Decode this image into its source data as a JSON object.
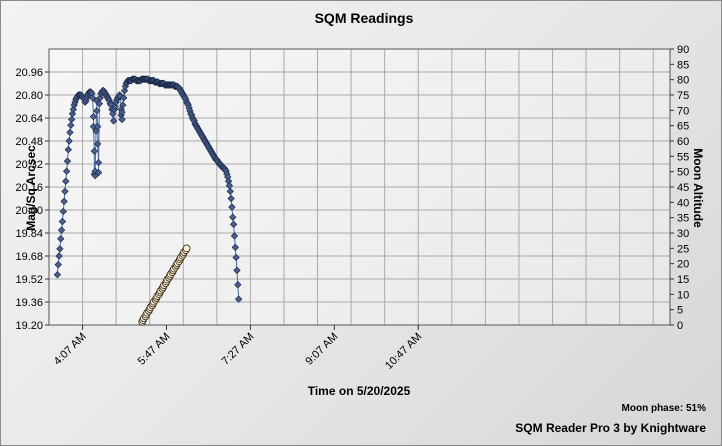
{
  "chart_data": {
    "type": "scatter",
    "title": "SQM Readings",
    "xlabel": "Time on 5/20/2025",
    "ylabel": "Mag/Sq Arcsec",
    "y2label": "Moon Altitude",
    "x_ticks": [
      "4:07 AM",
      "5:47 AM",
      "7:27 AM",
      "9:07 AM",
      "10:47 AM"
    ],
    "x_tick_minutes": [
      247,
      347,
      447,
      547,
      647
    ],
    "xlim_minutes": [
      207,
      947
    ],
    "ylim": [
      19.2,
      21.12
    ],
    "y_ticks": [
      "19.20",
      "19.36",
      "19.52",
      "19.68",
      "19.84",
      "20.00",
      "20.16",
      "20.32",
      "20.48",
      "20.64",
      "20.80",
      "20.96"
    ],
    "y2lim": [
      0,
      90
    ],
    "y2_ticks": [
      "0",
      "5",
      "10",
      "15",
      "20",
      "25",
      "30",
      "35",
      "40",
      "45",
      "50",
      "55",
      "60",
      "65",
      "70",
      "75",
      "80",
      "85",
      "90"
    ],
    "grid": true,
    "series": [
      {
        "kind": "sqm",
        "axis": "left",
        "color": "#4a5f8f",
        "points": [
          [
            217,
            19.55
          ],
          [
            218,
            19.62
          ],
          [
            219,
            19.68
          ],
          [
            220,
            19.73
          ],
          [
            221,
            19.8
          ],
          [
            222,
            19.86
          ],
          [
            223,
            19.92
          ],
          [
            224,
            19.99
          ],
          [
            225,
            20.06
          ],
          [
            226,
            20.13
          ],
          [
            227,
            20.2
          ],
          [
            228,
            20.27
          ],
          [
            229,
            20.34
          ],
          [
            230,
            20.42
          ],
          [
            231,
            20.48
          ],
          [
            232,
            20.54
          ],
          [
            233,
            20.59
          ],
          [
            234,
            20.63
          ],
          [
            235,
            20.67
          ],
          [
            236,
            20.7
          ],
          [
            237,
            20.73
          ],
          [
            238,
            20.75
          ],
          [
            239,
            20.77
          ],
          [
            240,
            20.78
          ],
          [
            241,
            20.79
          ],
          [
            242,
            20.8
          ],
          [
            243,
            20.8
          ],
          [
            244,
            20.8
          ],
          [
            245,
            20.8
          ],
          [
            246,
            20.79
          ],
          [
            247,
            20.79
          ],
          [
            248,
            20.78
          ],
          [
            249,
            20.77
          ],
          [
            250,
            20.75
          ],
          [
            251,
            20.76
          ],
          [
            252,
            20.78
          ],
          [
            253,
            20.8
          ],
          [
            254,
            20.81
          ],
          [
            255,
            20.82
          ],
          [
            256,
            20.82
          ],
          [
            257,
            20.82
          ],
          [
            258,
            20.81
          ],
          [
            259,
            20.78
          ],
          [
            260,
            20.65
          ],
          [
            260,
            20.58
          ],
          [
            261,
            20.41
          ],
          [
            261,
            20.25
          ],
          [
            262,
            20.24
          ],
          [
            262,
            20.27
          ],
          [
            263,
            20.55
          ],
          [
            264,
            20.76
          ],
          [
            264,
            20.69
          ],
          [
            265,
            20.58
          ],
          [
            265,
            20.46
          ],
          [
            266,
            20.33
          ],
          [
            266,
            20.26
          ],
          [
            267,
            20.74
          ],
          [
            268,
            20.78
          ],
          [
            269,
            20.81
          ],
          [
            270,
            20.82
          ],
          [
            271,
            20.83
          ],
          [
            272,
            20.83
          ],
          [
            273,
            20.82
          ],
          [
            274,
            20.81
          ],
          [
            275,
            20.8
          ],
          [
            276,
            20.79
          ],
          [
            277,
            20.78
          ],
          [
            278,
            20.77
          ],
          [
            279,
            20.76
          ],
          [
            280,
            20.74
          ],
          [
            281,
            20.73
          ],
          [
            282,
            20.7
          ],
          [
            283,
            20.67
          ],
          [
            284,
            20.62
          ],
          [
            285,
            20.7
          ],
          [
            286,
            20.72
          ],
          [
            287,
            20.75
          ],
          [
            288,
            20.77
          ],
          [
            289,
            20.78
          ],
          [
            290,
            20.79
          ],
          [
            291,
            20.8
          ],
          [
            292,
            20.79
          ],
          [
            293,
            20.7
          ],
          [
            293,
            20.66
          ],
          [
            294,
            20.63
          ],
          [
            294,
            20.68
          ],
          [
            295,
            20.73
          ],
          [
            296,
            20.78
          ],
          [
            297,
            20.83
          ],
          [
            298,
            20.86
          ],
          [
            299,
            20.88
          ],
          [
            300,
            20.89
          ],
          [
            301,
            20.9
          ],
          [
            302,
            20.9
          ],
          [
            303,
            20.9
          ],
          [
            304,
            20.9
          ],
          [
            305,
            20.9
          ],
          [
            306,
            20.91
          ],
          [
            307,
            20.91
          ],
          [
            308,
            20.91
          ],
          [
            309,
            20.91
          ],
          [
            310,
            20.91
          ],
          [
            311,
            20.9
          ],
          [
            312,
            20.9
          ],
          [
            313,
            20.9
          ],
          [
            314,
            20.9
          ],
          [
            315,
            20.9
          ],
          [
            316,
            20.9
          ],
          [
            317,
            20.91
          ],
          [
            318,
            20.91
          ],
          [
            319,
            20.91
          ],
          [
            320,
            20.91
          ],
          [
            321,
            20.91
          ],
          [
            322,
            20.91
          ],
          [
            323,
            20.91
          ],
          [
            324,
            20.91
          ],
          [
            325,
            20.91
          ],
          [
            326,
            20.9
          ],
          [
            327,
            20.9
          ],
          [
            328,
            20.9
          ],
          [
            329,
            20.9
          ],
          [
            330,
            20.9
          ],
          [
            331,
            20.9
          ],
          [
            332,
            20.9
          ],
          [
            333,
            20.89
          ],
          [
            334,
            20.89
          ],
          [
            335,
            20.89
          ],
          [
            336,
            20.89
          ],
          [
            337,
            20.89
          ],
          [
            338,
            20.88
          ],
          [
            339,
            20.88
          ],
          [
            340,
            20.88
          ],
          [
            341,
            20.88
          ],
          [
            342,
            20.88
          ],
          [
            343,
            20.88
          ],
          [
            344,
            20.88
          ],
          [
            345,
            20.87
          ],
          [
            346,
            20.87
          ],
          [
            347,
            20.87
          ],
          [
            348,
            20.87
          ],
          [
            349,
            20.87
          ],
          [
            350,
            20.87
          ],
          [
            351,
            20.87
          ],
          [
            352,
            20.87
          ],
          [
            353,
            20.87
          ],
          [
            354,
            20.87
          ],
          [
            355,
            20.87
          ],
          [
            356,
            20.87
          ],
          [
            357,
            20.86
          ],
          [
            358,
            20.86
          ],
          [
            359,
            20.86
          ],
          [
            360,
            20.86
          ],
          [
            361,
            20.85
          ],
          [
            362,
            20.85
          ],
          [
            363,
            20.84
          ],
          [
            364,
            20.83
          ],
          [
            365,
            20.82
          ],
          [
            366,
            20.81
          ],
          [
            367,
            20.8
          ],
          [
            368,
            20.79
          ],
          [
            369,
            20.78
          ],
          [
            370,
            20.77
          ],
          [
            371,
            20.75
          ],
          [
            372,
            20.74
          ],
          [
            373,
            20.73
          ],
          [
            374,
            20.71
          ],
          [
            375,
            20.69
          ],
          [
            376,
            20.67
          ],
          [
            377,
            20.66
          ],
          [
            378,
            20.64
          ],
          [
            379,
            20.63
          ],
          [
            380,
            20.62
          ],
          [
            381,
            20.6
          ],
          [
            382,
            20.59
          ],
          [
            383,
            20.58
          ],
          [
            384,
            20.57
          ],
          [
            385,
            20.56
          ],
          [
            386,
            20.55
          ],
          [
            387,
            20.54
          ],
          [
            388,
            20.53
          ],
          [
            389,
            20.52
          ],
          [
            390,
            20.51
          ],
          [
            391,
            20.5
          ],
          [
            392,
            20.49
          ],
          [
            393,
            20.48
          ],
          [
            394,
            20.47
          ],
          [
            395,
            20.46
          ],
          [
            396,
            20.45
          ],
          [
            397,
            20.44
          ],
          [
            398,
            20.43
          ],
          [
            399,
            20.42
          ],
          [
            400,
            20.41
          ],
          [
            401,
            20.4
          ],
          [
            402,
            20.39
          ],
          [
            403,
            20.38
          ],
          [
            404,
            20.37
          ],
          [
            405,
            20.36
          ],
          [
            406,
            20.35
          ],
          [
            407,
            20.35
          ],
          [
            408,
            20.34
          ],
          [
            409,
            20.33
          ],
          [
            410,
            20.32
          ],
          [
            411,
            20.32
          ],
          [
            412,
            20.31
          ],
          [
            413,
            20.3
          ],
          [
            414,
            20.3
          ],
          [
            415,
            20.29
          ],
          [
            416,
            20.29
          ],
          [
            417,
            20.28
          ],
          [
            418,
            20.27
          ],
          [
            419,
            20.25
          ],
          [
            420,
            20.23
          ],
          [
            421,
            20.2
          ],
          [
            422,
            20.17
          ],
          [
            423,
            20.13
          ],
          [
            424,
            20.08
          ],
          [
            425,
            20.02
          ],
          [
            426,
            19.95
          ],
          [
            427,
            19.9
          ],
          [
            428,
            19.82
          ],
          [
            429,
            19.74
          ],
          [
            430,
            19.67
          ],
          [
            431,
            19.58
          ],
          [
            432,
            19.48
          ],
          [
            433,
            19.38
          ]
        ]
      },
      {
        "kind": "moon",
        "axis": "right",
        "color": "#f6f0d6",
        "points": [
          [
            318,
            1
          ],
          [
            319,
            1.6
          ],
          [
            320,
            2.2
          ],
          [
            322,
            2.8
          ],
          [
            323,
            3.4
          ],
          [
            324,
            4
          ],
          [
            326,
            4.6
          ],
          [
            327,
            5.2
          ],
          [
            328,
            5.8
          ],
          [
            330,
            6.4
          ],
          [
            331,
            7
          ],
          [
            332,
            7.6
          ],
          [
            334,
            8.2
          ],
          [
            335,
            8.8
          ],
          [
            336,
            9.4
          ],
          [
            338,
            10
          ],
          [
            339,
            10.6
          ],
          [
            340,
            11.2
          ],
          [
            342,
            11.8
          ],
          [
            343,
            12.4
          ],
          [
            344,
            13
          ],
          [
            346,
            13.6
          ],
          [
            347,
            14.2
          ],
          [
            348,
            14.8
          ],
          [
            350,
            15.4
          ],
          [
            351,
            16
          ],
          [
            352,
            16.6
          ],
          [
            354,
            17.2
          ],
          [
            355,
            17.8
          ],
          [
            356,
            18.4
          ],
          [
            358,
            19
          ],
          [
            359,
            19.6
          ],
          [
            360,
            20.2
          ],
          [
            362,
            20.8
          ],
          [
            363,
            21.4
          ],
          [
            364,
            22
          ],
          [
            366,
            22.6
          ],
          [
            367,
            23.2
          ],
          [
            368,
            23.8
          ],
          [
            370,
            24.4
          ],
          [
            371,
            25
          ]
        ]
      }
    ]
  },
  "footer": {
    "moon_phase": "Moon phase: 51%",
    "credit": "SQM Reader Pro 3 by Knightware"
  }
}
